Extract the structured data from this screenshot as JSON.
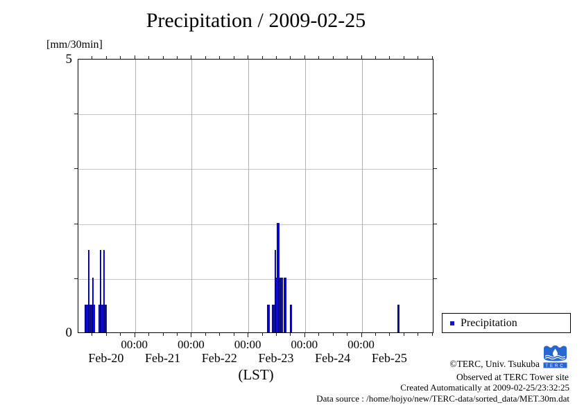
{
  "title": "Precipitation / 2009-02-25",
  "y_axis": {
    "unit": "[mm/30min]",
    "top_tick": "5",
    "bottom_tick": "0"
  },
  "x_axis": {
    "time_tick_labels": [
      "00:00",
      "00:00",
      "00:00",
      "00:00",
      "00:00"
    ],
    "day_labels": [
      "Feb-20",
      "Feb-21",
      "Feb-22",
      "Feb-23",
      "Feb-24",
      "Feb-25"
    ],
    "label": "(LST)"
  },
  "legend": {
    "items": [
      {
        "label": "Precipitation",
        "color": "#1212d6"
      }
    ]
  },
  "annotations": {
    "copyright": "©TERC, Univ. Tsukuba",
    "observed": "Observed at TERC Tower site",
    "created": "Created Automatically at 2009-02-25/23:32:25",
    "data_source": "Data source : /home/hojyo/new/TERC-data/sorted_data/MET.30m.dat",
    "logo_letters": "TERC",
    "logo_color": "#2767d2"
  },
  "chart_data": {
    "type": "bar",
    "title": "Precipitation / 2009-02-25",
    "ylabel": "[mm/30min]",
    "xlabel": "(LST)",
    "ylim": [
      0,
      5
    ],
    "x_range": [
      "2009-02-20 00:00",
      "2009-02-26 07:00"
    ],
    "x_major_ticks": [
      "2009-02-21 00:00",
      "2009-02-22 00:00",
      "2009-02-23 00:00",
      "2009-02-24 00:00",
      "2009-02-25 00:00"
    ],
    "x_minor_tick_hours": 6,
    "grid": true,
    "legend_position": "outside-right-bottom",
    "bar_width_minutes": 30,
    "series": [
      {
        "name": "Precipitation",
        "color": "#1212d6",
        "units": "mm/30min",
        "bars": [
          {
            "time": "2009-02-20 02:30",
            "value": 0.5
          },
          {
            "time": "2009-02-20 03:00",
            "value": 0.5
          },
          {
            "time": "2009-02-20 03:30",
            "value": 0.5
          },
          {
            "time": "2009-02-20 04:00",
            "value": 1.5
          },
          {
            "time": "2009-02-20 04:30",
            "value": 0.5
          },
          {
            "time": "2009-02-20 05:00",
            "value": 0.5
          },
          {
            "time": "2009-02-20 05:30",
            "value": 0.5
          },
          {
            "time": "2009-02-20 06:00",
            "value": 1.0
          },
          {
            "time": "2009-02-20 06:30",
            "value": 0.5
          },
          {
            "time": "2009-02-20 08:30",
            "value": 0.5
          },
          {
            "time": "2009-02-20 09:00",
            "value": 1.5
          },
          {
            "time": "2009-02-20 09:30",
            "value": 0.5
          },
          {
            "time": "2009-02-20 10:00",
            "value": 0.5
          },
          {
            "time": "2009-02-20 10:30",
            "value": 1.5
          },
          {
            "time": "2009-02-20 11:00",
            "value": 0.5
          },
          {
            "time": "2009-02-20 11:30",
            "value": 0.5
          },
          {
            "time": "2009-02-23 08:00",
            "value": 0.5
          },
          {
            "time": "2009-02-23 08:30",
            "value": 0.5
          },
          {
            "time": "2009-02-23 10:00",
            "value": 0.5
          },
          {
            "time": "2009-02-23 10:30",
            "value": 0.5
          },
          {
            "time": "2009-02-23 11:00",
            "value": 1.5
          },
          {
            "time": "2009-02-23 11:30",
            "value": 1.0
          },
          {
            "time": "2009-02-23 12:00",
            "value": 2.0
          },
          {
            "time": "2009-02-23 12:30",
            "value": 2.0
          },
          {
            "time": "2009-02-23 13:00",
            "value": 1.0
          },
          {
            "time": "2009-02-23 13:30",
            "value": 1.0
          },
          {
            "time": "2009-02-23 14:00",
            "value": 1.0
          },
          {
            "time": "2009-02-23 15:00",
            "value": 1.0
          },
          {
            "time": "2009-02-23 15:30",
            "value": 1.0
          },
          {
            "time": "2009-02-23 17:30",
            "value": 0.5
          },
          {
            "time": "2009-02-23 18:00",
            "value": 0.5
          },
          {
            "time": "2009-02-25 15:00",
            "value": 0.5
          },
          {
            "time": "2009-02-25 15:30",
            "value": 0.5
          }
        ]
      }
    ]
  }
}
